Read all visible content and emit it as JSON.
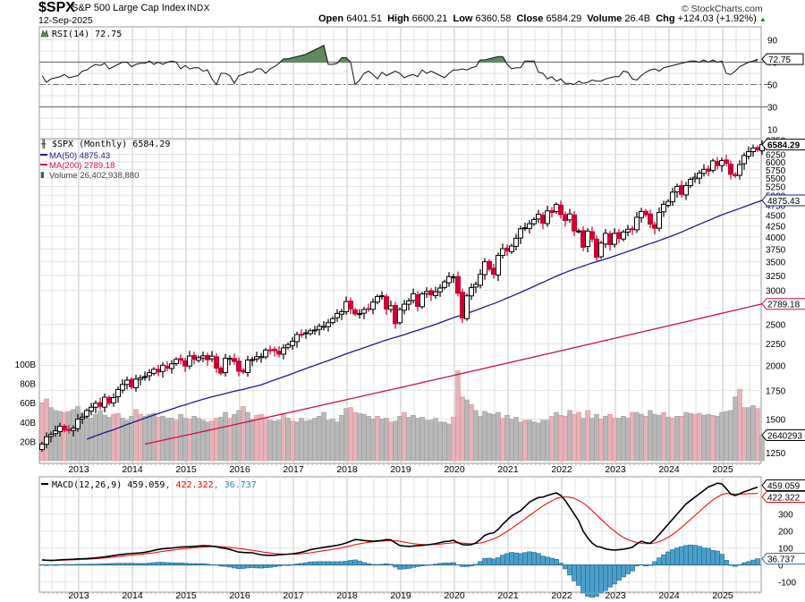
{
  "header": {
    "symbol": "$SPX",
    "name": "S&P 500 Large Cap Index",
    "exchange": "INDX",
    "date": "12-Sep-2025",
    "watermark": "© StockCharts.com",
    "open_label": "Open",
    "open": "6401.51",
    "high_label": "High",
    "high": "6600.21",
    "low_label": "Low",
    "low": "6360.58",
    "close_label": "Close",
    "close": "6584.29",
    "volume_label": "Volume",
    "volume": "26.4B",
    "chg_label": "Chg",
    "chg": "+124.03 (+1.92%)",
    "chg_icon": "up-triangle-icon"
  },
  "colors": {
    "up_candle": "#000000",
    "down_candle": "#cc0033",
    "ma50": "#1a1a8c",
    "ma200": "#cc1144",
    "rsi_fill": "#5e8c5e",
    "volume_up": "#b8b8b8",
    "volume_down": "#e6b3ba",
    "macd": "#000000",
    "signal": "#ee1111",
    "histogram": "#4aa0cc",
    "grid": "#d8d8d8"
  },
  "chart_data": [
    {
      "type": "line",
      "panel": "RSI",
      "title": "RSI(14) 72.75",
      "legend": "RSI(14) 72.75",
      "current_value": "72.75",
      "ylim": [
        0,
        100
      ],
      "y_ticks": [
        "90",
        "70",
        "50",
        "30",
        "10"
      ],
      "reference_lines": [
        70,
        50,
        30
      ],
      "start": "2012-05",
      "frequency": "monthly",
      "values": [
        58,
        52,
        55,
        56,
        57,
        59,
        56,
        57,
        58,
        62,
        63,
        66,
        68,
        67,
        69,
        64,
        66,
        68,
        70,
        70,
        66,
        68,
        69,
        69,
        71,
        68,
        70,
        68,
        70,
        71,
        70,
        64,
        67,
        64,
        65,
        65,
        62,
        63,
        55,
        50,
        60,
        60,
        58,
        51,
        58,
        59,
        61,
        61,
        64,
        64,
        60,
        64,
        66,
        69,
        73,
        73,
        74,
        75,
        76,
        77,
        79,
        81,
        83,
        85,
        68,
        68,
        69,
        74,
        74,
        70,
        50,
        54,
        60,
        62,
        59,
        55,
        61,
        58,
        60,
        62,
        60,
        56,
        58,
        59,
        57,
        63,
        60,
        62,
        60,
        58,
        56,
        60,
        63,
        63,
        64,
        63,
        65,
        66,
        72,
        72,
        73,
        74,
        75,
        75,
        68,
        64,
        65,
        65,
        71,
        71,
        71,
        61,
        60,
        55,
        57,
        53,
        55,
        51,
        51,
        50,
        53,
        51,
        52,
        54,
        53,
        53,
        55,
        56,
        57,
        57,
        62,
        61,
        55,
        54,
        58,
        61,
        63,
        64,
        62,
        65,
        66,
        67,
        68,
        69,
        70,
        71,
        71,
        70,
        72,
        70,
        72,
        70,
        71,
        60,
        59,
        62,
        66,
        68,
        70,
        71,
        72.75
      ]
    },
    {
      "type": "candlestick",
      "panel": "Price",
      "title": "$SPX (Monthly) 6584.29",
      "legend": [
        "$SPX (Monthly) 6584.29",
        "MA(50) 4875.43",
        "MA(200) 2789.18",
        "Volume 26,402,938,880"
      ],
      "scale": "log",
      "ylim": [
        1180,
        6800
      ],
      "y_ticks": [
        "6750",
        "6250",
        "6000",
        "5750",
        "5500",
        "5250",
        "5000",
        "4750",
        "4500",
        "4250",
        "4000",
        "3750",
        "3500",
        "3250",
        "3000",
        "2500",
        "2250",
        "2000",
        "1750",
        "1500",
        "1250"
      ],
      "last_labels": {
        "close": "6584.29",
        "ma50": "4875.43",
        "ma200": "2789.18",
        "volume": "2640293"
      },
      "x_ticks": [
        "2013",
        "2014",
        "2015",
        "2016",
        "2017",
        "2018",
        "2019",
        "2020",
        "2021",
        "2022",
        "2023",
        "2024",
        "2025"
      ],
      "start": "2012-05",
      "frequency": "monthly",
      "closes": [
        1310,
        1362,
        1379,
        1406,
        1441,
        1412,
        1416,
        1426,
        1498,
        1514,
        1569,
        1597,
        1631,
        1606,
        1686,
        1633,
        1682,
        1757,
        1806,
        1848,
        1783,
        1859,
        1872,
        1884,
        1924,
        1960,
        1931,
        2003,
        1972,
        2018,
        2067,
        2059,
        1995,
        2105,
        2068,
        2086,
        2107,
        2063,
        2104,
        1972,
        1920,
        2079,
        2080,
        2044,
        1940,
        1932,
        2060,
        2065,
        2097,
        2099,
        2174,
        2171,
        2168,
        2126,
        2199,
        2239,
        2279,
        2364,
        2363,
        2385,
        2412,
        2423,
        2470,
        2472,
        2519,
        2575,
        2648,
        2674,
        2823,
        2714,
        2641,
        2648,
        2705,
        2718,
        2816,
        2902,
        2914,
        2712,
        2760,
        2507,
        2704,
        2784,
        2834,
        2946,
        2752,
        2942,
        2980,
        2926,
        2977,
        3038,
        3141,
        3231,
        3226,
        2954,
        2585,
        2912,
        3044,
        3100,
        3271,
        3500,
        3363,
        3270,
        3622,
        3756,
        3714,
        3811,
        3973,
        4181,
        4204,
        4298,
        4395,
        4523,
        4308,
        4605,
        4567,
        4766,
        4516,
        4374,
        4530,
        4132,
        4132,
        3785,
        4130,
        3955,
        3586,
        3872,
        4080,
        3840,
        4077,
        3970,
        4109,
        4169,
        4180,
        4450,
        4589,
        4508,
        4288,
        4194,
        4568,
        4770,
        4846,
        5096,
        5254,
        5036,
        5278,
        5460,
        5522,
        5648,
        5762,
        5705,
        6032,
        5882,
        6040,
        5955,
        5612,
        5569,
        5912,
        6205,
        6339,
        6460,
        6401,
        6584.29
      ],
      "ma50_last": 4875.43,
      "ma200_last": 2789.18,
      "volume_unit": "B",
      "volume_axis_ticks": [
        "100B",
        "80B",
        "60B",
        "40B",
        "20B"
      ],
      "volumes": [
        60,
        64,
        55,
        52,
        51,
        50,
        51,
        53,
        56,
        50,
        45,
        44,
        48,
        52,
        47,
        45,
        48,
        49,
        44,
        42,
        46,
        53,
        48,
        46,
        48,
        49,
        45,
        46,
        44,
        44,
        42,
        48,
        44,
        43,
        46,
        44,
        42,
        40,
        41,
        44,
        45,
        50,
        44,
        48,
        52,
        56,
        50,
        43,
        47,
        48,
        44,
        42,
        41,
        42,
        49,
        44,
        41,
        40,
        44,
        41,
        42,
        44,
        46,
        50,
        42,
        43,
        40,
        47,
        54,
        55,
        50,
        49,
        48,
        46,
        43,
        46,
        43,
        44,
        40,
        41,
        46,
        50,
        45,
        47,
        44,
        45,
        42,
        42,
        44,
        40,
        40,
        38,
        45,
        93,
        66,
        63,
        58,
        52,
        46,
        51,
        49,
        48,
        50,
        44,
        47,
        43,
        45,
        40,
        42,
        42,
        40,
        39,
        42,
        42,
        46,
        50,
        47,
        46,
        52,
        48,
        50,
        44,
        52,
        44,
        48,
        43,
        46,
        48,
        44,
        44,
        46,
        44,
        50,
        50,
        48,
        46,
        52,
        48,
        47,
        50,
        45,
        44,
        46,
        46,
        50,
        49,
        48,
        49,
        47,
        48,
        47,
        46,
        50,
        51,
        52,
        66,
        74,
        55,
        55,
        57,
        54,
        26.4
      ],
      "volume_down_months": [
        0,
        1,
        5,
        16,
        17,
        21,
        22,
        26,
        30,
        33,
        38,
        39,
        42,
        45,
        48,
        49,
        50,
        54,
        56,
        69,
        70,
        75,
        78,
        81,
        92,
        93,
        94,
        96,
        103,
        108,
        114,
        116,
        117,
        119,
        120,
        122,
        125,
        127,
        128,
        132,
        135,
        139,
        141,
        143,
        146,
        147,
        150,
        156,
        157,
        160
      ]
    },
    {
      "type": "line",
      "panel": "MACD",
      "title": "MACD(12,26,9) 459.059, 422.322, 36.737",
      "legend": {
        "macd": "459.059",
        "signal": "422.322",
        "histogram": "36.737",
        "label": "MACD(12,26,9)"
      },
      "ylim": [
        -160,
        520
      ],
      "y_ticks": [
        "300",
        "200",
        "100",
        "0",
        "-100"
      ],
      "x_ticks": [
        "2013",
        "2014",
        "2015",
        "2016",
        "2017",
        "2018",
        "2019",
        "2020",
        "2021",
        "2022",
        "2023",
        "2024",
        "2025"
      ],
      "start": "2012-05",
      "frequency": "monthly",
      "macd": [
        30,
        28,
        27,
        28,
        30,
        32,
        33,
        34,
        36,
        37,
        38,
        40,
        42,
        45,
        48,
        52,
        56,
        60,
        63,
        66,
        68,
        70,
        72,
        75,
        80,
        86,
        92,
        96,
        98,
        100,
        103,
        106,
        107,
        108,
        110,
        112,
        114,
        113,
        111,
        108,
        102,
        98,
        92,
        84,
        76,
        74,
        73,
        72,
        66,
        60,
        58,
        57,
        58,
        60,
        62,
        64,
        66,
        70,
        75,
        82,
        90,
        95,
        100,
        104,
        108,
        112,
        116,
        122,
        130,
        140,
        150,
        148,
        144,
        142,
        140,
        142,
        145,
        150,
        148,
        130,
        115,
        112,
        110,
        112,
        114,
        116,
        118,
        122,
        126,
        132,
        138,
        140,
        145,
        132,
        120,
        118,
        120,
        130,
        150,
        175,
        185,
        190,
        210,
        240,
        265,
        290,
        305,
        320,
        345,
        370,
        385,
        398,
        400,
        410,
        418,
        425,
        410,
        380,
        340,
        300,
        260,
        200,
        160,
        130,
        110,
        105,
        95,
        90,
        88,
        90,
        93,
        98,
        105,
        125,
        140,
        132,
        128,
        150,
        180,
        210,
        240,
        270,
        300,
        330,
        360,
        380,
        400,
        420,
        440,
        460,
        470,
        482,
        478,
        450,
        418,
        410,
        420,
        432,
        440,
        450,
        459.059
      ],
      "signal": [
        28,
        28,
        28,
        28,
        28,
        29,
        30,
        31,
        32,
        33,
        34,
        35,
        37,
        39,
        41,
        44,
        47,
        50,
        53,
        56,
        58,
        61,
        63,
        66,
        69,
        72,
        76,
        80,
        84,
        87,
        91,
        94,
        97,
        100,
        102,
        104,
        106,
        108,
        109,
        109,
        108,
        106,
        104,
        101,
        97,
        94,
        90,
        87,
        83,
        78,
        74,
        71,
        68,
        66,
        64,
        64,
        64,
        64,
        66,
        69,
        72,
        76,
        80,
        84,
        88,
        93,
        97,
        102,
        108,
        113,
        120,
        125,
        130,
        134,
        137,
        139,
        141,
        143,
        144,
        142,
        140,
        135,
        130,
        126,
        123,
        121,
        120,
        120,
        121,
        123,
        126,
        128,
        131,
        131,
        129,
        127,
        125,
        126,
        130,
        136,
        145,
        155,
        167,
        182,
        198,
        216,
        234,
        253,
        272,
        292,
        311,
        330,
        348,
        364,
        378,
        392,
        399,
        402,
        399,
        393,
        380,
        365,
        345,
        320,
        295,
        270,
        245,
        220,
        200,
        180,
        163,
        150,
        140,
        132,
        128,
        126,
        126,
        130,
        138,
        150,
        163,
        180,
        200,
        222,
        245,
        268,
        292,
        315,
        340,
        362,
        384,
        400,
        415,
        422,
        420,
        418,
        418,
        419,
        420,
        421,
        422.322
      ],
      "histogram": [
        2,
        0,
        -1,
        0,
        2,
        3,
        3,
        3,
        4,
        4,
        4,
        5,
        5,
        6,
        7,
        8,
        9,
        10,
        10,
        10,
        10,
        9,
        9,
        9,
        11,
        14,
        16,
        16,
        14,
        13,
        12,
        12,
        10,
        8,
        8,
        8,
        8,
        5,
        2,
        -1,
        -6,
        -8,
        -12,
        -17,
        -21,
        -20,
        -17,
        -15,
        -17,
        -18,
        -16,
        -14,
        -10,
        -6,
        -2,
        0,
        2,
        6,
        9,
        13,
        18,
        19,
        20,
        20,
        20,
        19,
        19,
        20,
        22,
        27,
        30,
        23,
        14,
        8,
        3,
        3,
        4,
        7,
        4,
        -12,
        -25,
        -23,
        -20,
        -14,
        -9,
        -5,
        -2,
        2,
        5,
        9,
        12,
        12,
        14,
        1,
        -9,
        -9,
        -5,
        4,
        20,
        39,
        40,
        35,
        43,
        58,
        67,
        74,
        71,
        67,
        73,
        78,
        74,
        68,
        52,
        46,
        40,
        33,
        11,
        -22,
        -59,
        -93,
        -120,
        -165,
        -185,
        -190,
        -185,
        -165,
        -150,
        -130,
        -112,
        -90,
        -70,
        -52,
        -35,
        -5,
        2,
        -6,
        -2,
        20,
        42,
        60,
        77,
        90,
        100,
        108,
        115,
        118,
        116,
        110,
        100,
        98,
        86,
        82,
        63,
        28,
        -2,
        -8,
        2,
        13,
        20,
        29,
        36.737
      ]
    }
  ]
}
